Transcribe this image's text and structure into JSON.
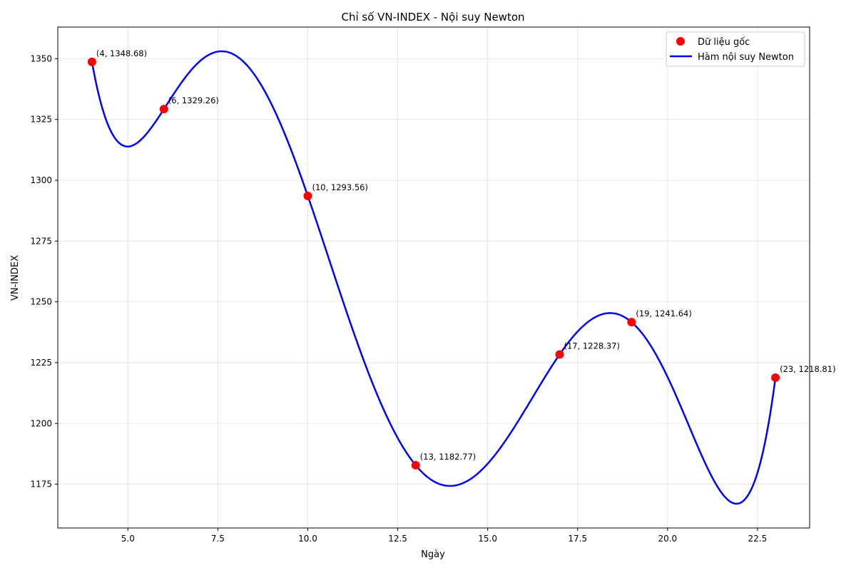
{
  "chart_data": {
    "type": "line",
    "title": "Chỉ số VN-INDEX - Nội suy Newton",
    "xlabel": "Ngày",
    "ylabel": "VN-INDEX",
    "xlim": [
      3.05,
      23.95
    ],
    "ylim": [
      1157,
      1363
    ],
    "grid": true,
    "legend_position": "top-right",
    "x_ticks": [
      5.0,
      7.5,
      10.0,
      12.5,
      15.0,
      17.5,
      20.0,
      22.5
    ],
    "x_tick_labels": [
      "5.0",
      "7.5",
      "10.0",
      "12.5",
      "15.0",
      "17.5",
      "20.0",
      "22.5"
    ],
    "y_ticks": [
      1175,
      1200,
      1225,
      1250,
      1275,
      1300,
      1325,
      1350
    ],
    "y_tick_labels": [
      "1175",
      "1200",
      "1225",
      "1250",
      "1275",
      "1300",
      "1325",
      "1350"
    ],
    "series": [
      {
        "name": "Dữ liệu gốc",
        "kind": "scatter",
        "color": "#ff0000",
        "x": [
          4,
          6,
          10,
          13,
          17,
          19,
          23
        ],
        "y": [
          1348.68,
          1329.26,
          1293.56,
          1182.77,
          1228.37,
          1241.64,
          1218.81
        ],
        "labels": [
          "(4, 1348.68)",
          "(6, 1329.26)",
          "(10, 1293.56)",
          "(13, 1182.77)",
          "(17, 1228.37)",
          "(19, 1241.64)",
          "(23, 1218.81)"
        ]
      },
      {
        "name": "Hàm nội suy Newton",
        "kind": "line",
        "color": "#0000ff",
        "x_range": [
          4,
          23
        ]
      }
    ]
  }
}
